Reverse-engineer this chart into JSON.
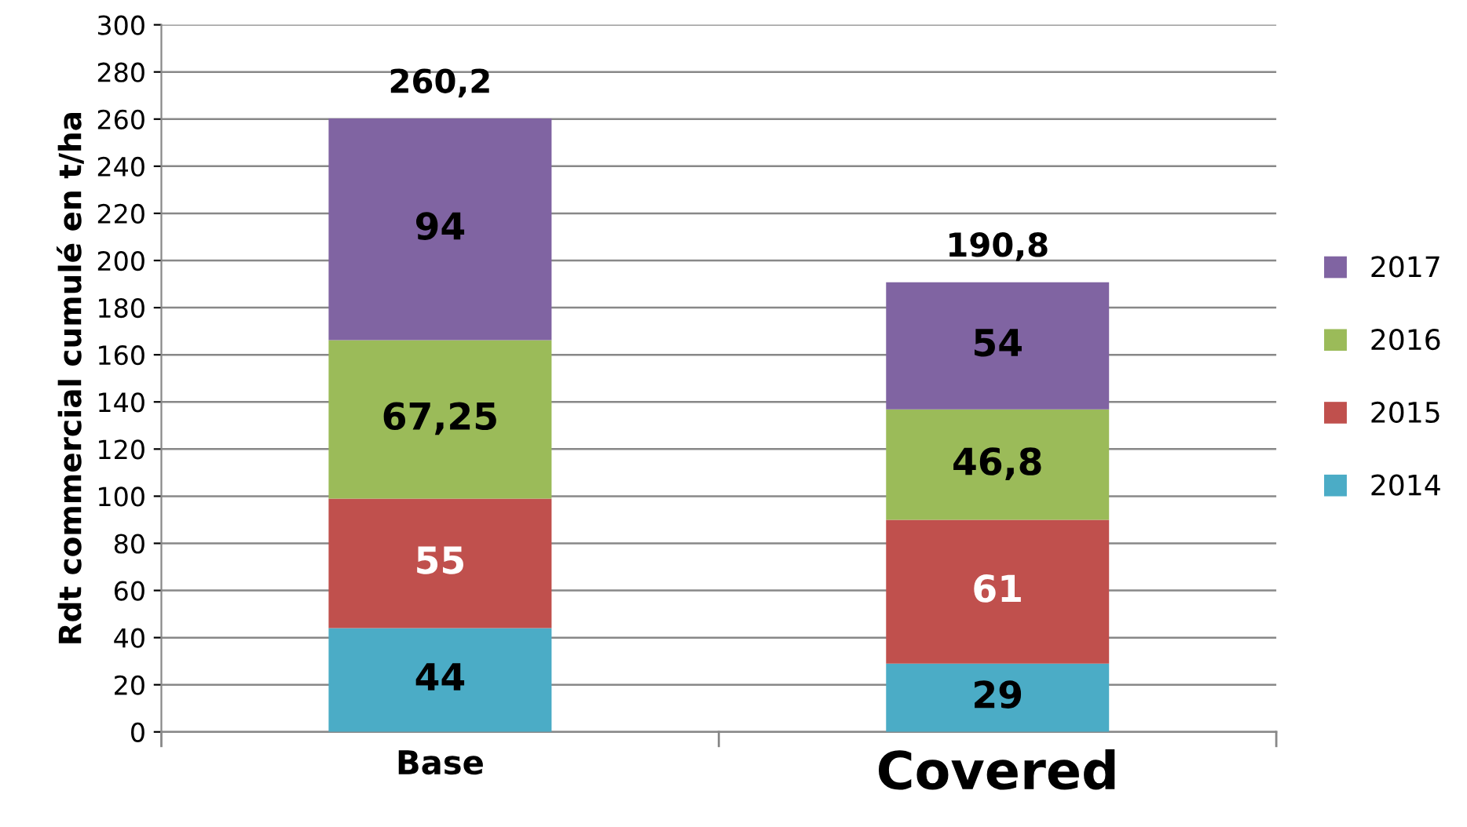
{
  "chart_data": {
    "type": "bar",
    "stacked": true,
    "ylabel": "Rdt commercial cumulé en t/ha",
    "categories": [
      "Base",
      "Covered"
    ],
    "series": [
      {
        "name": "2014",
        "color": "#4bacc6",
        "values": [
          44,
          29
        ],
        "value_labels": [
          "44",
          "29"
        ]
      },
      {
        "name": "2015",
        "color": "#c0504d",
        "values": [
          55,
          61
        ],
        "value_labels": [
          "55",
          "61"
        ]
      },
      {
        "name": "2016",
        "color": "#9bbb59",
        "values": [
          67.25,
          46.8
        ],
        "value_labels": [
          "67,25",
          "46,8"
        ]
      },
      {
        "name": "2017",
        "color": "#8064a2",
        "values": [
          94,
          54
        ],
        "value_labels": [
          "94",
          "54"
        ]
      }
    ],
    "totals": [
      "260,2",
      "190,8"
    ],
    "ylim": [
      0,
      300
    ],
    "yticks": [
      0,
      20,
      40,
      60,
      80,
      100,
      120,
      140,
      160,
      180,
      200,
      220,
      240,
      260,
      280,
      300
    ],
    "grid": "y",
    "legend": "right"
  }
}
